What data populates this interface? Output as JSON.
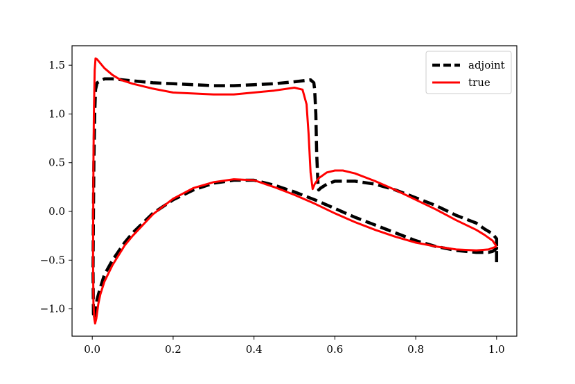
{
  "chart_data": {
    "type": "line",
    "title": "",
    "xlabel": "",
    "ylabel": "",
    "xlim": [
      -0.05,
      1.05
    ],
    "ylim": [
      -1.28,
      1.7
    ],
    "grid": false,
    "legend_position": "top-right",
    "xticks": [
      0.0,
      0.2,
      0.4,
      0.6,
      0.8,
      1.0
    ],
    "xtick_labels": [
      "0.0",
      "0.2",
      "0.4",
      "0.6",
      "0.8",
      "1.0"
    ],
    "yticks": [
      -1.0,
      -0.5,
      0.0,
      0.5,
      1.0,
      1.5
    ],
    "ytick_labels": [
      "−1.0",
      "−0.5",
      "0.0",
      "0.5",
      "1.0",
      "1.5"
    ],
    "series": [
      {
        "name": "adjoint",
        "color": "#000000",
        "style": "dashed",
        "x": [
          1.0,
          1.0,
          0.99,
          0.97,
          0.95,
          0.9,
          0.85,
          0.8,
          0.75,
          0.7,
          0.65,
          0.6,
          0.58,
          0.565,
          0.56,
          0.558,
          0.555,
          0.553,
          0.55,
          0.548,
          0.54,
          0.5,
          0.45,
          0.4,
          0.35,
          0.3,
          0.25,
          0.2,
          0.15,
          0.1,
          0.05,
          0.03,
          0.02,
          0.012,
          0.008,
          0.006,
          0.004,
          0.003,
          0.002,
          0.003,
          0.005,
          0.008,
          0.012,
          0.02,
          0.03,
          0.05,
          0.08,
          0.1,
          0.15,
          0.2,
          0.25,
          0.3,
          0.35,
          0.4,
          0.45,
          0.5,
          0.55,
          0.6,
          0.65,
          0.7,
          0.75,
          0.8,
          0.85,
          0.9,
          0.95,
          0.98,
          0.99,
          1.0,
          1.0
        ],
        "y": [
          -0.52,
          -0.28,
          -0.23,
          -0.18,
          -0.12,
          -0.04,
          0.06,
          0.14,
          0.22,
          0.28,
          0.31,
          0.31,
          0.28,
          0.24,
          0.22,
          0.3,
          0.6,
          1.0,
          1.25,
          1.32,
          1.35,
          1.33,
          1.31,
          1.3,
          1.29,
          1.29,
          1.3,
          1.31,
          1.32,
          1.34,
          1.36,
          1.36,
          1.34,
          1.32,
          1.25,
          1.0,
          0.5,
          0.0,
          -0.6,
          -1.05,
          -1.1,
          -1.0,
          -0.9,
          -0.78,
          -0.65,
          -0.5,
          -0.32,
          -0.22,
          -0.02,
          0.12,
          0.22,
          0.29,
          0.32,
          0.32,
          0.27,
          0.2,
          0.12,
          0.03,
          -0.06,
          -0.14,
          -0.22,
          -0.3,
          -0.36,
          -0.4,
          -0.42,
          -0.42,
          -0.41,
          -0.38,
          -0.3
        ]
      },
      {
        "name": "true",
        "color": "#ff0000",
        "style": "solid",
        "x": [
          1.0,
          0.99,
          0.97,
          0.95,
          0.9,
          0.85,
          0.8,
          0.75,
          0.7,
          0.65,
          0.62,
          0.6,
          0.58,
          0.56,
          0.55,
          0.545,
          0.54,
          0.535,
          0.53,
          0.52,
          0.5,
          0.45,
          0.4,
          0.35,
          0.3,
          0.25,
          0.2,
          0.15,
          0.1,
          0.07,
          0.05,
          0.03,
          0.02,
          0.012,
          0.008,
          0.006,
          0.004,
          0.003,
          0.002,
          0.003,
          0.005,
          0.007,
          0.01,
          0.015,
          0.02,
          0.03,
          0.05,
          0.08,
          0.1,
          0.15,
          0.2,
          0.25,
          0.3,
          0.35,
          0.4,
          0.45,
          0.5,
          0.55,
          0.6,
          0.65,
          0.7,
          0.75,
          0.8,
          0.85,
          0.9,
          0.95,
          0.98,
          1.0
        ],
        "y": [
          -0.36,
          -0.3,
          -0.24,
          -0.19,
          -0.09,
          0.02,
          0.12,
          0.22,
          0.31,
          0.39,
          0.42,
          0.42,
          0.4,
          0.34,
          0.28,
          0.23,
          0.4,
          0.8,
          1.1,
          1.25,
          1.27,
          1.24,
          1.22,
          1.2,
          1.2,
          1.21,
          1.22,
          1.26,
          1.31,
          1.35,
          1.4,
          1.47,
          1.52,
          1.56,
          1.57,
          1.45,
          1.0,
          0.5,
          -0.5,
          -0.95,
          -1.1,
          -1.15,
          -1.1,
          -0.95,
          -0.85,
          -0.72,
          -0.55,
          -0.35,
          -0.25,
          -0.03,
          0.13,
          0.24,
          0.3,
          0.33,
          0.32,
          0.25,
          0.17,
          0.08,
          -0.02,
          -0.11,
          -0.19,
          -0.26,
          -0.32,
          -0.36,
          -0.39,
          -0.4,
          -0.39,
          -0.36
        ]
      }
    ]
  }
}
